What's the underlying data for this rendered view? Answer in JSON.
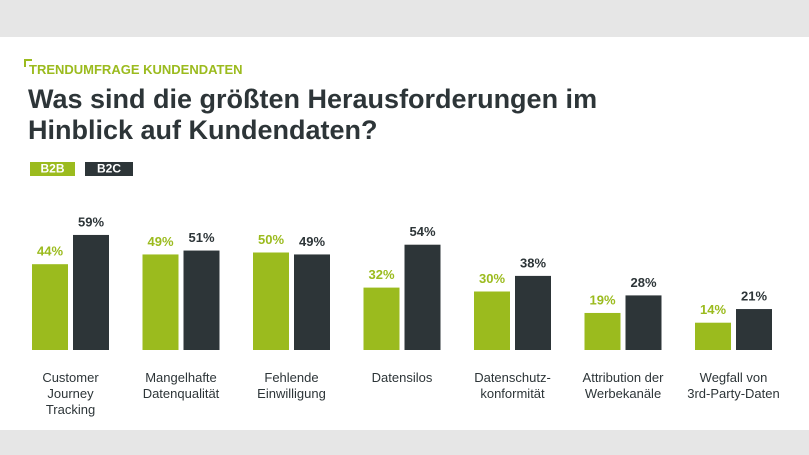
{
  "chart_data": {
    "type": "bar",
    "subtitle": "TRENDUMFRAGE KUNDENDATEN",
    "title": "Was sind die größten Herausforderungen im Hinblick auf Kundendaten?",
    "categories": [
      "Customer\nJourney\nTracking",
      "Mangelhafte\nDatenqualität",
      "Fehlende\nEinwilligung",
      "Datensilos",
      "Datenschutz-\nkonformität",
      "Attribution der\nWerbekanäle",
      "Wegfall von\n3rd-Party-Daten"
    ],
    "series": [
      {
        "name": "B2B",
        "color": "#9bbb1e",
        "values": [
          44,
          49,
          50,
          32,
          30,
          19,
          14
        ],
        "value_labels": [
          "44%",
          "49%",
          "50%",
          "32%",
          "30%",
          "19%",
          "14%"
        ]
      },
      {
        "name": "B2C",
        "color": "#2d3538",
        "values": [
          59,
          51,
          49,
          54,
          38,
          28,
          21
        ],
        "value_labels": [
          "59%",
          "51%",
          "49%",
          "54%",
          "38%",
          "28%",
          "21%"
        ]
      }
    ]
  }
}
